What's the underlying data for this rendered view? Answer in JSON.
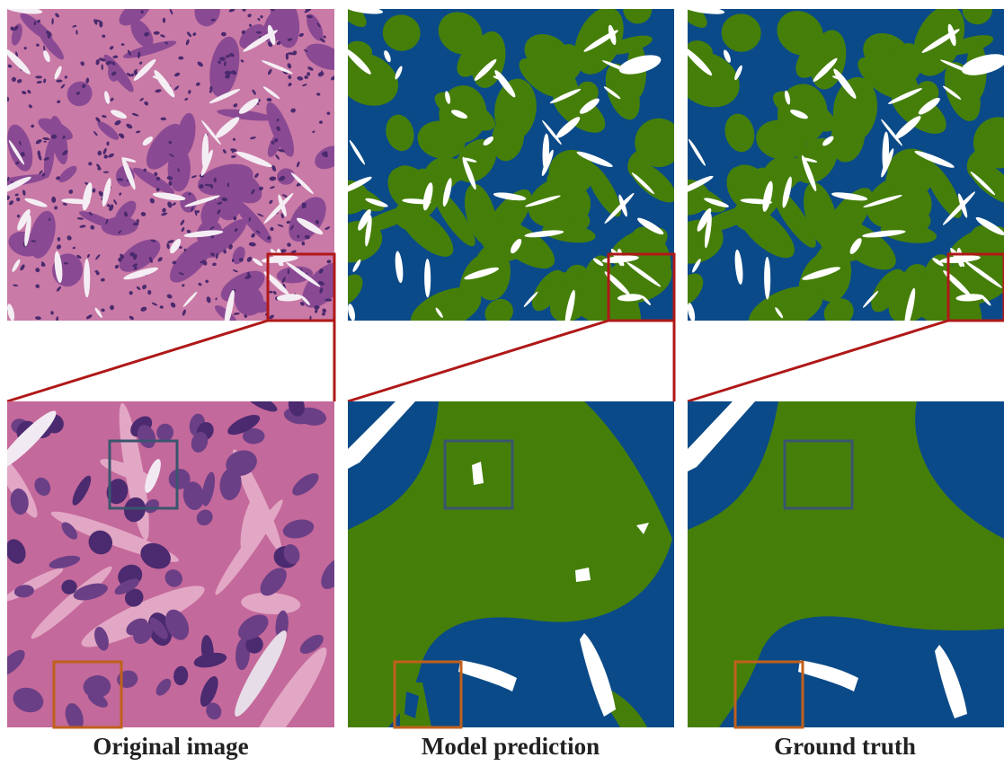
{
  "captions": [
    "Original image",
    "Model prediction",
    "Ground truth"
  ]
}
